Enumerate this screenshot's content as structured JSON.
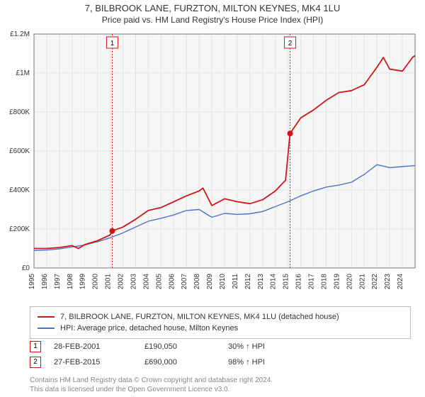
{
  "title": "7, BILBROOK LANE, FURZTON, MILTON KEYNES, MK4 1LU",
  "subtitle": "Price paid vs. HM Land Registry's House Price Index (HPI)",
  "chart": {
    "type": "line",
    "plot_bg": "#f6f6f6",
    "page_bg": "#ffffff",
    "grid_color": "#e4e4e4",
    "axis_color": "#7a7a7a",
    "tick_font_size": 10,
    "ylim": [
      0,
      1200000
    ],
    "ytick_step": 200000,
    "yticks": [
      "£0",
      "£200K",
      "£400K",
      "£600K",
      "£800K",
      "£1M",
      "£1.2M"
    ],
    "x_years": [
      1995,
      1996,
      1997,
      1998,
      1999,
      2000,
      2001,
      2002,
      2003,
      2004,
      2005,
      2006,
      2007,
      2008,
      2009,
      2010,
      2011,
      2012,
      2013,
      2014,
      2015,
      2016,
      2017,
      2018,
      2019,
      2020,
      2021,
      2022,
      2023,
      2024
    ],
    "x_range": [
      1995,
      2025
    ],
    "series": [
      {
        "key": "property",
        "label": "7, BILBROOK LANE, FURZTON, MILTON KEYNES, MK4 1LU (detached house)",
        "color": "#d11616",
        "stroke_width": 1.8,
        "points": [
          [
            1995.0,
            100000
          ],
          [
            1996.0,
            100000
          ],
          [
            1997.0,
            105000
          ],
          [
            1998.0,
            115000
          ],
          [
            1998.5,
            100000
          ],
          [
            1999.0,
            120000
          ],
          [
            2000.0,
            140000
          ],
          [
            2001.0,
            170000
          ],
          [
            2001.16,
            190050
          ],
          [
            2002.0,
            210000
          ],
          [
            2003.0,
            250000
          ],
          [
            2004.0,
            295000
          ],
          [
            2005.0,
            310000
          ],
          [
            2006.0,
            340000
          ],
          [
            2007.0,
            370000
          ],
          [
            2008.0,
            395000
          ],
          [
            2008.3,
            410000
          ],
          [
            2009.0,
            320000
          ],
          [
            2010.0,
            355000
          ],
          [
            2011.0,
            340000
          ],
          [
            2012.0,
            330000
          ],
          [
            2013.0,
            350000
          ],
          [
            2014.0,
            395000
          ],
          [
            2014.8,
            450000
          ],
          [
            2015.16,
            690000
          ],
          [
            2016.0,
            770000
          ],
          [
            2017.0,
            810000
          ],
          [
            2018.0,
            860000
          ],
          [
            2019.0,
            900000
          ],
          [
            2020.0,
            910000
          ],
          [
            2021.0,
            940000
          ],
          [
            2022.0,
            1030000
          ],
          [
            2022.5,
            1080000
          ],
          [
            2023.0,
            1020000
          ],
          [
            2024.0,
            1010000
          ],
          [
            2024.8,
            1080000
          ],
          [
            2025.0,
            1090000
          ]
        ]
      },
      {
        "key": "hpi",
        "label": "HPI: Average price, detached house, Milton Keynes",
        "color": "#4a74c9",
        "stroke_width": 1.4,
        "points": [
          [
            1995.0,
            90000
          ],
          [
            1996.0,
            92000
          ],
          [
            1997.0,
            98000
          ],
          [
            1998.0,
            108000
          ],
          [
            1999.0,
            118000
          ],
          [
            2000.0,
            135000
          ],
          [
            2001.0,
            155000
          ],
          [
            2002.0,
            180000
          ],
          [
            2003.0,
            210000
          ],
          [
            2004.0,
            240000
          ],
          [
            2005.0,
            255000
          ],
          [
            2006.0,
            272000
          ],
          [
            2007.0,
            295000
          ],
          [
            2008.0,
            300000
          ],
          [
            2009.0,
            260000
          ],
          [
            2010.0,
            280000
          ],
          [
            2011.0,
            275000
          ],
          [
            2012.0,
            278000
          ],
          [
            2013.0,
            290000
          ],
          [
            2014.0,
            315000
          ],
          [
            2015.0,
            340000
          ],
          [
            2016.0,
            370000
          ],
          [
            2017.0,
            395000
          ],
          [
            2018.0,
            415000
          ],
          [
            2019.0,
            425000
          ],
          [
            2020.0,
            440000
          ],
          [
            2021.0,
            480000
          ],
          [
            2022.0,
            530000
          ],
          [
            2023.0,
            515000
          ],
          [
            2024.0,
            520000
          ],
          [
            2025.0,
            525000
          ]
        ]
      }
    ],
    "markers": [
      {
        "n": 1,
        "x": 2001.16,
        "y": 190050,
        "color": "#d11616",
        "line_color": "#d11616"
      },
      {
        "n": 2,
        "x": 2015.16,
        "y": 690000,
        "color": "#d11616",
        "line_color": "#d11616"
      }
    ]
  },
  "legend": {
    "border_color": "#bdbdbd"
  },
  "sales": [
    {
      "n": "1",
      "border": "#d11616",
      "date": "28-FEB-2001",
      "price": "£190,050",
      "pct": "30% ↑ HPI"
    },
    {
      "n": "2",
      "border": "#d11616",
      "date": "27-FEB-2015",
      "price": "£690,000",
      "pct": "98% ↑ HPI"
    }
  ],
  "footer_line1": "Contains HM Land Registry data © Crown copyright and database right 2024.",
  "footer_line2": "This data is licensed under the Open Government Licence v3.0."
}
